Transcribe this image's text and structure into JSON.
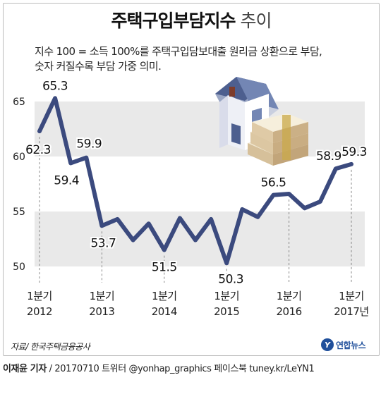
{
  "header": {
    "title_main": "주택구입부담지수",
    "title_sub": "추이"
  },
  "description": {
    "line1": "지수 100 = 소득 100%를 주택구입담보대출 원리금 상환으로 부담,",
    "line2": "숫자 커질수록 부담 가중 의미."
  },
  "chart_data": {
    "type": "line",
    "ylim": [
      49,
      66
    ],
    "y_ticks": [
      50,
      55,
      60,
      65
    ],
    "grid": false,
    "line_color": "#3b4a7e",
    "band_color": "#e9e9e9",
    "series": [
      {
        "values": [
          62.3,
          65.3,
          59.4,
          59.9,
          53.7,
          54.3,
          52.4,
          53.9,
          51.5,
          54.4,
          52.4,
          54.3,
          50.3,
          55.2,
          54.5,
          56.5,
          56.6,
          55.3,
          55.9,
          58.9,
          59.3
        ]
      }
    ],
    "data_labels": [
      {
        "index": 0,
        "text": "62.3"
      },
      {
        "index": 1,
        "text": "65.3"
      },
      {
        "index": 2,
        "text": "59.4"
      },
      {
        "index": 3,
        "text": "59.9"
      },
      {
        "index": 4,
        "text": "53.7"
      },
      {
        "index": 8,
        "text": "51.5"
      },
      {
        "index": 12,
        "text": "50.3"
      },
      {
        "index": 15,
        "text": "56.5"
      },
      {
        "index": 19,
        "text": "58.9"
      },
      {
        "index": 20,
        "text": "59.3"
      }
    ],
    "x_ticks": [
      {
        "index": 0,
        "line1": "1분기",
        "line2": "2012"
      },
      {
        "index": 4,
        "line1": "1분기",
        "line2": "2013"
      },
      {
        "index": 8,
        "line1": "1분기",
        "line2": "2014"
      },
      {
        "index": 12,
        "line1": "1분기",
        "line2": "2015"
      },
      {
        "index": 16,
        "line1": "1분기",
        "line2": "2016"
      },
      {
        "index": 20,
        "line1": "1분기",
        "line2": "2017년"
      }
    ]
  },
  "footer": {
    "source": "자료/ 한국주택금융공사",
    "logo_mark": "Y",
    "logo_text": "연합뉴스",
    "author": "이재윤 기자",
    "credit_rest": " / 20170710  트위터 @yonhap_graphics  페이스북 tuney.kr/LeYN1"
  }
}
